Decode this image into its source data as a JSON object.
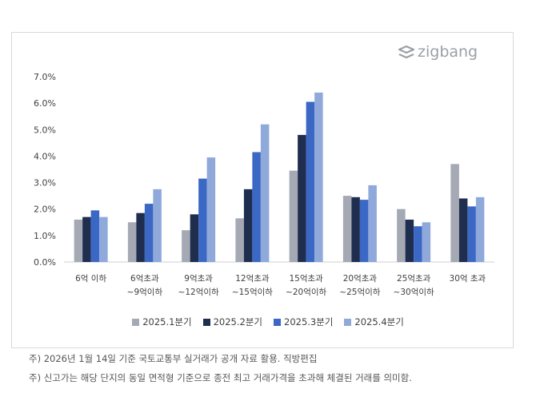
{
  "logo": {
    "text": "zigbang"
  },
  "chart_data": {
    "type": "bar",
    "categories": [
      [
        "6억 이하",
        ""
      ],
      [
        "6억초과",
        "~9억이하"
      ],
      [
        "9억초과",
        "~12억이하"
      ],
      [
        "12억초과",
        "~15억이하"
      ],
      [
        "15억초과",
        "~20억이하"
      ],
      [
        "20억초과",
        "~25억이하"
      ],
      [
        "25억초과",
        "~30억이하"
      ],
      [
        "30억 초과",
        ""
      ]
    ],
    "series": [
      {
        "name": "2025.1분기",
        "color": "#a5a9b4",
        "values": [
          1.6,
          1.5,
          1.2,
          1.65,
          3.45,
          2.5,
          2.0,
          3.7
        ]
      },
      {
        "name": "2025.2분기",
        "color": "#1f2d4f",
        "values": [
          1.7,
          1.85,
          1.8,
          2.75,
          4.8,
          2.45,
          1.6,
          2.4
        ]
      },
      {
        "name": "2025.3분기",
        "color": "#3a68c4",
        "values": [
          1.95,
          2.2,
          3.15,
          4.15,
          6.05,
          2.35,
          1.35,
          2.1
        ]
      },
      {
        "name": "2025.4분기",
        "color": "#8fa9db",
        "values": [
          1.7,
          2.75,
          3.95,
          5.2,
          6.4,
          2.9,
          1.5,
          2.45
        ]
      }
    ],
    "yticks": [
      "0.0%",
      "1.0%",
      "2.0%",
      "3.0%",
      "4.0%",
      "5.0%",
      "6.0%",
      "7.0%"
    ],
    "ylim": [
      0,
      7
    ],
    "ylabel": "",
    "xlabel": "",
    "title": "",
    "legend": "bottom",
    "grid": false
  },
  "notes": [
    "주) 2026년 1월 14일 기준 국토교통부 실거래가 공개 자료 활용. 직방편집",
    "주) 신고가는 해당 단지의 동일 면적형 기준으로 종전 최고 거래가격을 초과해 체결된 거래를 의미함."
  ]
}
